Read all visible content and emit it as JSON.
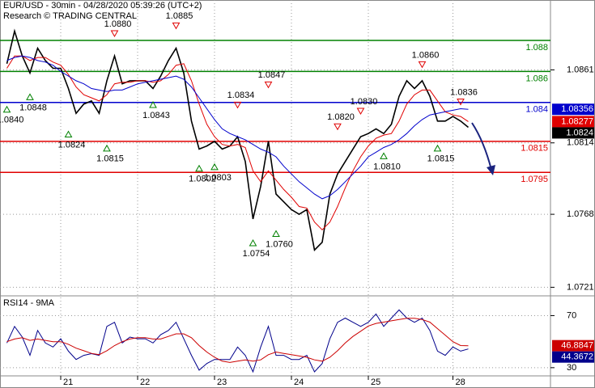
{
  "chart_data": [
    {
      "type": "line",
      "title": "EUR/USD - 30min - 04/28/2020 05:39:26 (UTC+2)",
      "subtitle": "Research © TRADING CENTRAL",
      "categories": [
        null,
        null,
        null,
        null,
        null,
        null,
        null,
        "21",
        null,
        null,
        null,
        null,
        null,
        null,
        null,
        null,
        null,
        "22",
        null,
        null,
        null,
        null,
        null,
        null,
        null,
        null,
        null,
        "23",
        null,
        null,
        null,
        null,
        null,
        null,
        null,
        null,
        null,
        "24",
        null,
        null,
        null,
        null,
        null,
        null,
        null,
        null,
        null,
        "25",
        null,
        null,
        null,
        null,
        null,
        null,
        null,
        null,
        null,
        null,
        "28",
        null,
        null
      ],
      "series": [
        {
          "color": "#000000",
          "values": [
            1.0865,
            1.0886,
            1.087,
            1.0859,
            1.0875,
            1.0867,
            1.0862,
            1.0862,
            1.0849,
            1.0833,
            1.0839,
            1.0841,
            1.0833,
            1.0854,
            1.087,
            1.0852,
            1.0854,
            1.0854,
            1.0854,
            1.0849,
            1.0857,
            1.0867,
            1.0875,
            1.0859,
            1.0828,
            1.081,
            1.0812,
            1.0815,
            1.081,
            1.0812,
            1.0818,
            1.0802,
            1.0765,
            1.0786,
            1.0815,
            1.0781,
            1.0776,
            1.0771,
            1.0768,
            1.0771,
            1.0745,
            1.075,
            1.0781,
            1.0794,
            1.0802,
            1.081,
            1.0818,
            1.082,
            1.0823,
            1.082,
            1.0826,
            1.0844,
            1.0854,
            1.0849,
            1.0854,
            1.0844,
            1.0828,
            1.0828,
            1.0831,
            1.0828,
            1.0824
          ]
        },
        {
          "color": "#e00000",
          "values": [
            1.0862,
            1.087,
            1.087,
            1.0867,
            1.0869,
            1.0869,
            1.0866,
            1.0864,
            1.0858,
            1.085,
            1.0845,
            1.0843,
            1.0841,
            1.0845,
            1.0852,
            1.0853,
            1.0853,
            1.0854,
            1.0854,
            1.0853,
            1.0854,
            1.0858,
            1.0864,
            1.0865,
            1.0854,
            1.0839,
            1.0826,
            1.0818,
            1.0813,
            1.0812,
            1.0813,
            1.0811,
            1.0796,
            1.0789,
            1.0796,
            1.079,
            1.0784,
            1.0779,
            1.0773,
            1.0772,
            1.0763,
            1.0758,
            1.0763,
            1.0773,
            1.0785,
            1.0796,
            1.0805,
            1.0812,
            1.0817,
            1.0819,
            1.082,
            1.0828,
            1.0839,
            1.0845,
            1.0848,
            1.0848,
            1.0841,
            1.0834,
            1.0832,
            1.0831,
            1.08277
          ]
        },
        {
          "color": "#0000cc",
          "values": [
            1.0867,
            1.0869,
            1.087,
            1.0869,
            1.0867,
            1.0866,
            1.0864,
            1.086,
            1.0857,
            1.0854,
            1.0852,
            1.0849,
            1.0848,
            1.0847,
            1.0848,
            1.0848,
            1.085,
            1.0852,
            1.0853,
            1.0854,
            1.0855,
            1.0856,
            1.0857,
            1.0855,
            1.085,
            1.0843,
            1.0836,
            1.0829,
            1.0823,
            1.082,
            1.0818,
            1.0816,
            1.0813,
            1.081,
            1.0808,
            1.0805,
            1.0799,
            1.0794,
            1.0789,
            1.0785,
            1.0781,
            1.0778,
            1.078,
            1.0784,
            1.0789,
            1.0794,
            1.0799,
            1.0805,
            1.0808,
            1.0811,
            1.0813,
            1.0816,
            1.082,
            1.0825,
            1.0829,
            1.0832,
            1.0833,
            1.0834,
            1.0835,
            1.0836,
            1.08356
          ]
        }
      ],
      "levels": [
        {
          "value": 1.088,
          "color": "#008000"
        },
        {
          "value": 1.086,
          "color": "#008000"
        },
        {
          "value": 1.084,
          "color": "#0000cc"
        },
        {
          "value": 1.0815,
          "color": "#e00000"
        },
        {
          "value": 1.0795,
          "color": "#e00000"
        }
      ],
      "annotations": [
        {
          "at": 0,
          "value": 1.084,
          "label": "1.0840",
          "kind": "low"
        },
        {
          "at": 3,
          "value": 1.0848,
          "label": "1.0848",
          "kind": "low"
        },
        {
          "at": 8,
          "value": 1.0824,
          "label": "1.0824",
          "kind": "low"
        },
        {
          "at": 13,
          "value": 1.0815,
          "label": "1.0815",
          "kind": "low"
        },
        {
          "at": 14,
          "value": 1.088,
          "label": "1.0880",
          "kind": "high"
        },
        {
          "at": 19,
          "value": 1.0843,
          "label": "1.0843",
          "kind": "low"
        },
        {
          "at": 22,
          "value": 1.0885,
          "label": "1.0885",
          "kind": "high"
        },
        {
          "at": 25,
          "value": 1.0802,
          "label": "1.0802",
          "kind": "low"
        },
        {
          "at": 27,
          "value": 1.0803,
          "label": "1.0803",
          "kind": "low"
        },
        {
          "at": 30,
          "value": 1.0834,
          "label": "1.0834",
          "kind": "high"
        },
        {
          "at": 32,
          "value": 1.0754,
          "label": "1.0754",
          "kind": "low"
        },
        {
          "at": 34,
          "value": 1.0847,
          "label": "1.0847",
          "kind": "high"
        },
        {
          "at": 35,
          "value": 1.076,
          "label": "1.0760",
          "kind": "low"
        },
        {
          "at": 43,
          "value": 1.082,
          "label": "1.0820",
          "kind": "high"
        },
        {
          "at": 46,
          "value": 1.083,
          "label": "1.0830",
          "kind": "high"
        },
        {
          "at": 49,
          "value": 1.081,
          "label": "1.0810",
          "kind": "low"
        },
        {
          "at": 54,
          "value": 1.086,
          "label": "1.0860",
          "kind": "high"
        },
        {
          "at": 56,
          "value": 1.0815,
          "label": "1.0815",
          "kind": "low"
        },
        {
          "at": 59,
          "value": 1.0836,
          "label": "1.0836",
          "kind": "high"
        }
      ],
      "ylim": [
        1.0716,
        1.0906
      ],
      "yticks": [
        1.0861,
        1.0814,
        1.0768,
        1.0721
      ],
      "grid": true
    },
    {
      "type": "line",
      "title": "RSI14 - 9MA",
      "series": [
        {
          "color": "#00008b",
          "values": [
            49.0,
            61.7,
            53.5,
            39.5,
            58.6,
            49.0,
            45.9,
            52.2,
            42.7,
            36.3,
            39.5,
            40.8,
            39.5,
            61.7,
            64.9,
            49.0,
            53.5,
            52.2,
            52.2,
            49.0,
            55.4,
            58.6,
            64.9,
            52.2,
            39.5,
            28.1,
            33.2,
            36.3,
            36.3,
            36.3,
            45.9,
            39.5,
            26.8,
            45.9,
            61.7,
            39.5,
            39.5,
            36.3,
            36.3,
            39.5,
            26.8,
            33.2,
            52.2,
            64.9,
            68.1,
            64.9,
            61.7,
            64.9,
            71.3,
            61.7,
            68.1,
            74.4,
            68.1,
            64.9,
            68.1,
            58.6,
            42.7,
            39.5,
            45.9,
            42.7,
            44.3672
          ]
        },
        {
          "color": "#cc0000",
          "values": [
            50,
            52,
            53,
            51,
            52,
            51,
            50,
            50,
            48,
            45,
            43,
            41,
            40,
            43,
            47,
            50,
            52,
            53,
            53,
            52,
            52,
            54,
            56,
            56,
            53,
            47,
            42,
            38,
            35,
            34,
            35,
            36,
            35,
            36,
            40,
            42,
            41,
            40,
            39,
            38,
            36,
            35,
            38,
            43,
            49,
            54,
            58,
            62,
            64,
            65,
            66,
            67,
            68,
            68,
            67,
            65,
            60,
            55,
            50,
            47,
            46.8847
          ]
        }
      ],
      "ylim": [
        23.7,
        85.2
      ],
      "yticks": [
        30,
        70
      ],
      "grid": true
    }
  ]
}
